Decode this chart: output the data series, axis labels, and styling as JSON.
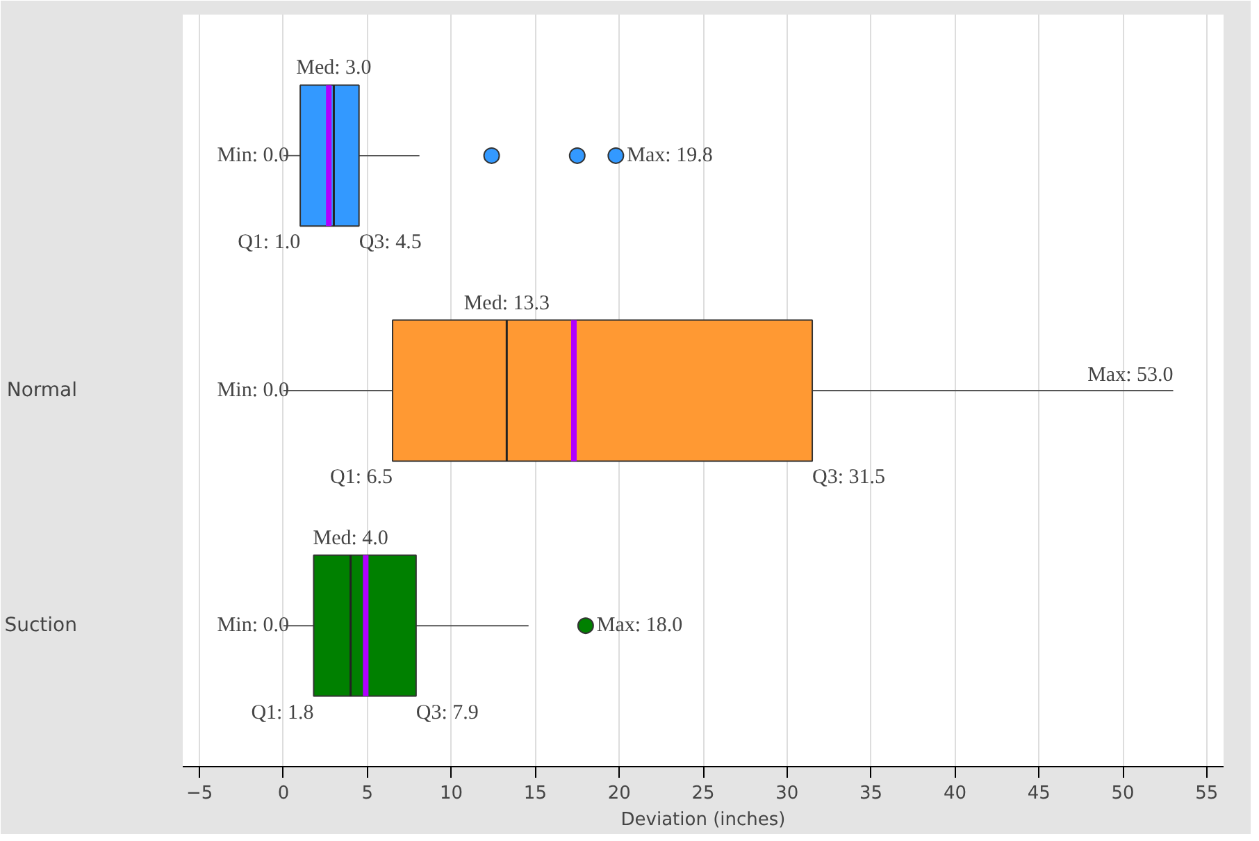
{
  "chart_data": {
    "type": "box",
    "orientation": "horizontal",
    "categories": [
      null,
      "Normal",
      "Suction"
    ],
    "xlabel": "Deviation (inches)",
    "xlim": [
      -6,
      56
    ],
    "xticks": [
      -5,
      0,
      5,
      10,
      15,
      20,
      25,
      30,
      35,
      40,
      45,
      50,
      55
    ],
    "grid": "x",
    "colors": [
      "#3399ff",
      "#ff9933",
      "#008000"
    ],
    "boxes": [
      {
        "low": 0.0,
        "q1": 1.0,
        "median": 3.0,
        "q3": 4.5,
        "high": 8.1,
        "mean": 2.7,
        "outliers": [
          12.4,
          17.5,
          19.8
        ]
      },
      {
        "low": 0.0,
        "q1": 6.5,
        "median": 13.3,
        "q3": 31.5,
        "high": 53.0,
        "mean": 17.3
      },
      {
        "low": 0.0,
        "q1": 1.8,
        "median": 4.0,
        "q3": 7.9,
        "high": 14.6,
        "mean": 4.9,
        "outliers": [
          18.0
        ]
      }
    ],
    "annotations": [
      "Med: 3.0",
      "Min: 0.0",
      "Max: 19.8",
      "Q1: 1.0",
      "Q3: 4.5",
      "Med: 13.3",
      "Min: 0.0",
      "Max: 53.0",
      "Q1: 6.5",
      "Q3: 31.5",
      "Med: 4.0",
      "Min: 0.0",
      "Max: 18.0",
      "Q1: 1.8",
      "Q3: 7.9"
    ]
  }
}
